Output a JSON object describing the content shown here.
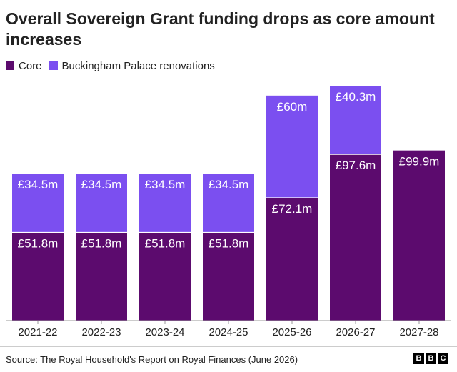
{
  "title": "Overall Sovereign Grant funding drops as core amount increases",
  "legend": [
    {
      "label": "Core",
      "color": "#5c0b6e"
    },
    {
      "label": "Buckingham Palace renovations",
      "color": "#7b4ff0"
    }
  ],
  "source": "Source: The Royal Household's Report on Royal Finances (June 2026)",
  "logo": {
    "letters": [
      "B",
      "B",
      "C"
    ]
  },
  "chart_data": {
    "type": "bar",
    "stacked": true,
    "title": "Overall Sovereign Grant funding drops as core amount increases",
    "categories": [
      "2021-22",
      "2022-23",
      "2023-24",
      "2024-25",
      "2025-26",
      "2026-27",
      "2027-28"
    ],
    "series": [
      {
        "name": "Core",
        "color": "#5c0b6e",
        "values": [
          51.8,
          51.8,
          51.8,
          51.8,
          72.1,
          97.6,
          99.9
        ],
        "labels": [
          "£51.8m",
          "£51.8m",
          "£51.8m",
          "£51.8m",
          "£72.1m",
          "£97.6m",
          "£99.9m"
        ]
      },
      {
        "name": "Buckingham Palace renovations",
        "color": "#7b4ff0",
        "values": [
          34.5,
          34.5,
          34.5,
          34.5,
          60,
          40.3,
          0
        ],
        "labels": [
          "£34.5m",
          "£34.5m",
          "£34.5m",
          "£34.5m",
          "£60m",
          "£40.3m",
          ""
        ]
      }
    ],
    "ylim": [
      0,
      137.9
    ],
    "grid": false,
    "legend_position": "top-left"
  }
}
